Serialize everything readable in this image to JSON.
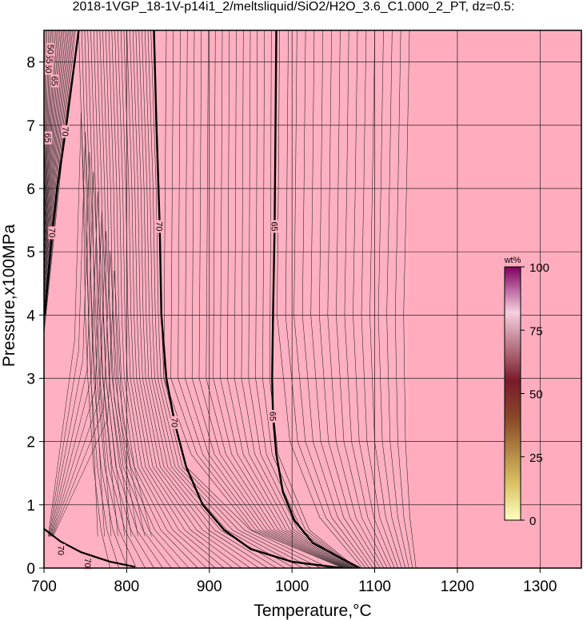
{
  "chart_data": {
    "type": "contour",
    "title": "2018-1VGP_18-1V-p14i1_2/meltsliquid/SiO2/H2O_3.6_C1.000_2_PT, dz=0.5:",
    "xlabel": "Temperature,°C",
    "ylabel": "Pressure,x100MPa",
    "xlim": [
      700,
      1350
    ],
    "ylim": [
      0,
      8.5
    ],
    "xticks": [
      700,
      800,
      900,
      1000,
      1100,
      1200,
      1300
    ],
    "yticks": [
      0,
      1,
      2,
      3,
      4,
      5,
      6,
      7,
      8
    ],
    "grid": true,
    "fill_color": "#ffadbe",
    "liquidus_fill_color": "#ffb3c4",
    "contour_labels": [
      {
        "text": "70",
        "x": 840,
        "y": 5.4
      },
      {
        "text": "70",
        "x": 858,
        "y": 2.3
      },
      {
        "text": "65",
        "x": 979,
        "y": 5.4
      },
      {
        "text": "65",
        "x": 977,
        "y": 2.4
      },
      {
        "text": "70",
        "x": 710,
        "y": 5.3
      },
      {
        "text": "65",
        "x": 705,
        "y": 6.8
      },
      {
        "text": "70",
        "x": 726,
        "y": 6.9
      },
      {
        "text": "70",
        "x": 721,
        "y": 0.28
      },
      {
        "text": "70",
        "x": 753,
        "y": 0.08
      },
      {
        "text": "65",
        "x": 713,
        "y": 7.7
      },
      {
        "text": "60",
        "x": 706,
        "y": 7.9
      },
      {
        "text": "55",
        "x": 707,
        "y": 8.05
      },
      {
        "text": "50",
        "x": 708,
        "y": 8.2
      }
    ],
    "bold_contours": [
      {
        "level": "70",
        "points": [
          [
            833,
            8.5
          ],
          [
            836,
            7.0
          ],
          [
            840,
            5.4
          ],
          [
            842,
            4.0
          ],
          [
            848,
            3.0
          ],
          [
            858,
            2.3
          ],
          [
            872,
            1.6
          ],
          [
            892,
            1.0
          ],
          [
            918,
            0.6
          ],
          [
            950,
            0.3
          ],
          [
            1000,
            0.1
          ],
          [
            1060,
            0.0
          ]
        ]
      },
      {
        "level": "65",
        "points": [
          [
            981,
            8.5
          ],
          [
            980,
            7.0
          ],
          [
            979,
            5.4
          ],
          [
            977,
            4.0
          ],
          [
            976,
            3.0
          ],
          [
            977,
            2.4
          ],
          [
            981,
            1.8
          ],
          [
            989,
            1.2
          ],
          [
            1003,
            0.75
          ],
          [
            1025,
            0.4
          ],
          [
            1060,
            0.15
          ],
          [
            1082,
            0.0
          ]
        ]
      },
      {
        "level": "70 (left)",
        "points": [
          [
            742,
            8.5
          ],
          [
            735,
            7.8
          ],
          [
            726,
            6.9
          ],
          [
            716,
            6.0
          ],
          [
            710,
            5.3
          ],
          [
            705,
            4.6
          ],
          [
            701,
            4.0
          ]
        ]
      }
    ],
    "colorbar": {
      "label": "wt%",
      "ticks": [
        "0",
        "25",
        "50",
        "75",
        "100"
      ],
      "colors": [
        "#ffffc0",
        "#d8bf60",
        "#8a4a28",
        "#7a1a2a",
        "#f6cfe0",
        "#800060"
      ]
    }
  }
}
